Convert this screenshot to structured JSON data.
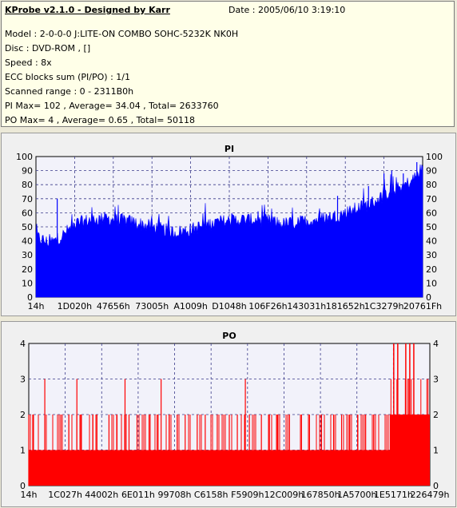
{
  "info": {
    "title": "KProbe v2.1.0 - Designed by Karr",
    "date": "Date : 2005/06/10 3:19:10",
    "model": "Model : 2-0-0-0 J:LITE-ON COMBO SOHC-5232K NK0H",
    "disc": "Disc : DVD-ROM ,  []",
    "speed": "Speed : 8x",
    "ecc": "ECC blocks sum (PI/PO) : 1/1",
    "range": "Scanned range : 0 - 2311B0h",
    "pi_stats": "PI Max= 102 , Average= 34.04 , Total= 2633760",
    "po_stats": "PO Max= 4 , Average= 0.65 , Total= 50118"
  },
  "colors": {
    "pi": "#0000ff",
    "po": "#ff0000",
    "plot_bg": "#f2f2fa",
    "grid": "#3a3a8a"
  },
  "chart_data": [
    {
      "type": "area",
      "title": "PI",
      "ylim": [
        0,
        100
      ],
      "yticks": [
        0,
        10,
        20,
        30,
        40,
        50,
        60,
        70,
        80,
        90,
        100
      ],
      "xtick_labels": [
        "14h",
        "1D020h",
        "47656h",
        "73005h",
        "A1009h",
        "D1048h",
        "106F26h",
        "143031h",
        "181652h",
        "1C3279h",
        "20761Fh"
      ],
      "grid": true,
      "envelope_x": [
        0,
        0.03,
        0.05,
        0.06,
        0.07,
        0.1,
        0.14,
        0.18,
        0.24,
        0.3,
        0.36,
        0.4,
        0.46,
        0.52,
        0.58,
        0.64,
        0.7,
        0.74,
        0.78,
        0.82,
        0.86,
        0.9,
        0.94,
        0.97,
        1.0
      ],
      "envelope_y": [
        43,
        39,
        40,
        42,
        44,
        52,
        55,
        56,
        54,
        50,
        46,
        48,
        53,
        55,
        55,
        52,
        54,
        56,
        58,
        62,
        66,
        72,
        78,
        82,
        92
      ],
      "spikes": [
        {
          "x": 0.055,
          "y": 70
        },
        {
          "x": 0.78,
          "y": 72
        },
        {
          "x": 0.86,
          "y": 79
        },
        {
          "x": 0.9,
          "y": 88
        },
        {
          "x": 0.92,
          "y": 90
        },
        {
          "x": 0.95,
          "y": 88
        },
        {
          "x": 0.985,
          "y": 96
        }
      ]
    },
    {
      "type": "bar",
      "title": "PO",
      "ylim": [
        0,
        4
      ],
      "yticks": [
        0,
        1,
        2,
        3,
        4
      ],
      "xtick_labels": [
        "14h",
        "1C027h",
        "44002h",
        "6E011h",
        "99708h",
        "C6158h",
        "F5909h",
        "12C009h",
        "167850h",
        "1A5700h",
        "1E5171h",
        "226479h"
      ],
      "grid": true,
      "baseline": 1,
      "spikes2_x": [
        0.0,
        0.01,
        0.04,
        0.08,
        0.1,
        0.13,
        0.16,
        0.17,
        0.2,
        0.22,
        0.24,
        0.25,
        0.27,
        0.3,
        0.32,
        0.35,
        0.37,
        0.39,
        0.42,
        0.44,
        0.47,
        0.5,
        0.52,
        0.55,
        0.58,
        0.6,
        0.62,
        0.65,
        0.68,
        0.7,
        0.73,
        0.76,
        0.78,
        0.8,
        0.82,
        0.84,
        0.86
      ],
      "spikes3_x": [
        0.04,
        0.12,
        0.24,
        0.33,
        0.54
      ],
      "dense_start": 0.9,
      "dense_level": 2,
      "spikes4_x": [
        0.91,
        0.92,
        0.94,
        0.95,
        0.96
      ]
    }
  ]
}
